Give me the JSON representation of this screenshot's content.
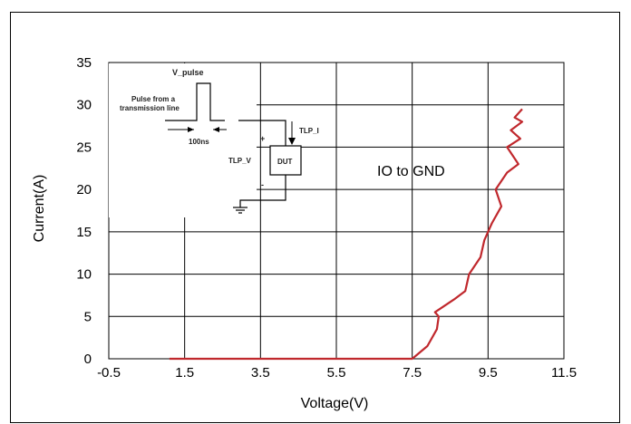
{
  "chart_data": {
    "type": "line",
    "xlabel": "Voltage(V)",
    "ylabel": "Current(A)",
    "xlim": [
      -0.5,
      11.5
    ],
    "ylim": [
      0,
      35
    ],
    "x_ticks": [
      "-0.5",
      "1.5",
      "3.5",
      "5.5",
      "7.5",
      "9.5",
      "11.5"
    ],
    "y_ticks": [
      "0",
      "5",
      "10",
      "15",
      "20",
      "25",
      "30",
      "35"
    ],
    "grid": true,
    "line_color": "#c0282d",
    "annotation": "IO to GND",
    "series": [
      {
        "x": [
          1.1,
          7.5,
          7.9,
          8.15,
          8.2,
          8.1,
          8.6,
          8.9,
          9.0,
          9.3,
          9.4,
          9.6,
          9.85,
          9.7,
          10.0,
          10.3,
          10.0,
          10.35,
          10.1,
          10.4,
          10.2,
          10.4
        ],
        "y": [
          0,
          0,
          1.5,
          3.5,
          5,
          5.5,
          7,
          8,
          10,
          12,
          14,
          16,
          18,
          20,
          22,
          23,
          25,
          26,
          27,
          28,
          28.5,
          29.5
        ]
      }
    ]
  },
  "inset": {
    "v_pulse": "V_pulse",
    "pulse_caption_line1": "Pulse from a",
    "pulse_caption_line2": "transmission line",
    "width_label": "100ns",
    "current_label": "TLP_I",
    "voltage_label": "TLP_V",
    "dut_label": "DUT",
    "plus": "+",
    "minus": "-"
  }
}
